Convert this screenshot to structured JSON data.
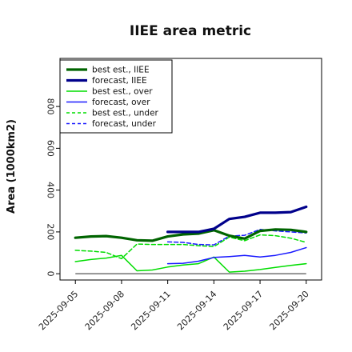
{
  "chart_data": {
    "type": "line",
    "title": "IIEE area metric",
    "ylabel": "Area (1000km2)",
    "xlabel": "",
    "ylim": [
      -30,
      1030
    ],
    "yticks": [
      0,
      200,
      400,
      600,
      800
    ],
    "x_range": [
      "2025-09-04",
      "2025-09-21"
    ],
    "x": [
      "2025-09-05",
      "2025-09-06",
      "2025-09-07",
      "2025-09-08",
      "2025-09-09",
      "2025-09-10",
      "2025-09-11",
      "2025-09-12",
      "2025-09-13",
      "2025-09-14",
      "2025-09-15",
      "2025-09-16",
      "2025-09-17",
      "2025-09-18",
      "2025-09-19",
      "2025-09-20"
    ],
    "xtick_labels": [
      "2025-09-05",
      "2025-09-08",
      "2025-09-11",
      "2025-09-14",
      "2025-09-17",
      "2025-09-20"
    ],
    "highlight_tick": "2025-09-11",
    "highlight_color": "#2e8b22",
    "legend_position": "upper-left",
    "grid": false,
    "baseline": {
      "y": 0,
      "from": "2025-09-05",
      "to": "2025-09-20",
      "color": "#555555"
    },
    "series": [
      {
        "name": "best est., IIEE",
        "color": "#006400",
        "dash": "solid",
        "width": 3.2,
        "x": [
          "2025-09-05",
          "2025-09-06",
          "2025-09-07",
          "2025-09-08",
          "2025-09-09",
          "2025-09-10",
          "2025-09-11",
          "2025-09-12",
          "2025-09-13",
          "2025-09-14",
          "2025-09-15",
          "2025-09-16",
          "2025-09-17",
          "2025-09-18",
          "2025-09-19",
          "2025-09-20"
        ],
        "values": [
          172,
          178,
          180,
          172,
          160,
          158,
          178,
          188,
          192,
          208,
          182,
          168,
          205,
          212,
          210,
          200
        ]
      },
      {
        "name": "forecast, IIEE",
        "color": "#00008b",
        "dash": "solid",
        "width": 3.2,
        "x": [
          "2025-09-11",
          "2025-09-12",
          "2025-09-13",
          "2025-09-14",
          "2025-09-15",
          "2025-09-16",
          "2025-09-17",
          "2025-09-18",
          "2025-09-19",
          "2025-09-20"
        ],
        "values": [
          200,
          200,
          200,
          215,
          262,
          272,
          292,
          292,
          295,
          320
        ]
      },
      {
        "name": "best est., over",
        "color": "#00dd00",
        "dash": "solid",
        "width": 1.5,
        "x": [
          "2025-09-05",
          "2025-09-06",
          "2025-09-07",
          "2025-09-08",
          "2025-09-09",
          "2025-09-10",
          "2025-09-11",
          "2025-09-12",
          "2025-09-13",
          "2025-09-14",
          "2025-09-15",
          "2025-09-16",
          "2025-09-17",
          "2025-09-18",
          "2025-09-19",
          "2025-09-20"
        ],
        "values": [
          58,
          68,
          75,
          88,
          14,
          18,
          32,
          42,
          48,
          80,
          8,
          12,
          20,
          30,
          40,
          48
        ]
      },
      {
        "name": "forecast, over",
        "color": "#1a1aff",
        "dash": "solid",
        "width": 1.5,
        "x": [
          "2025-09-11",
          "2025-09-12",
          "2025-09-13",
          "2025-09-14",
          "2025-09-15",
          "2025-09-16",
          "2025-09-17",
          "2025-09-18",
          "2025-09-19",
          "2025-09-20"
        ],
        "values": [
          48,
          50,
          60,
          78,
          82,
          88,
          80,
          88,
          102,
          125
        ]
      },
      {
        "name": "best est., under",
        "color": "#00dd00",
        "dash": "dashed",
        "width": 1.5,
        "x": [
          "2025-09-05",
          "2025-09-06",
          "2025-09-07",
          "2025-09-08",
          "2025-09-09",
          "2025-09-10",
          "2025-09-11",
          "2025-09-12",
          "2025-09-13",
          "2025-09-14",
          "2025-09-15",
          "2025-09-16",
          "2025-09-17",
          "2025-09-18",
          "2025-09-19",
          "2025-09-20"
        ],
        "values": [
          112,
          108,
          102,
          72,
          142,
          140,
          140,
          140,
          134,
          130,
          175,
          158,
          186,
          182,
          170,
          150
        ]
      },
      {
        "name": "forecast, under",
        "color": "#1a1aff",
        "dash": "dashed",
        "width": 1.5,
        "x": [
          "2025-09-11",
          "2025-09-12",
          "2025-09-13",
          "2025-09-14",
          "2025-09-15",
          "2025-09-16",
          "2025-09-17",
          "2025-09-18",
          "2025-09-19",
          "2025-09-20"
        ],
        "values": [
          152,
          150,
          140,
          138,
          180,
          184,
          212,
          205,
          200,
          195
        ]
      }
    ]
  }
}
